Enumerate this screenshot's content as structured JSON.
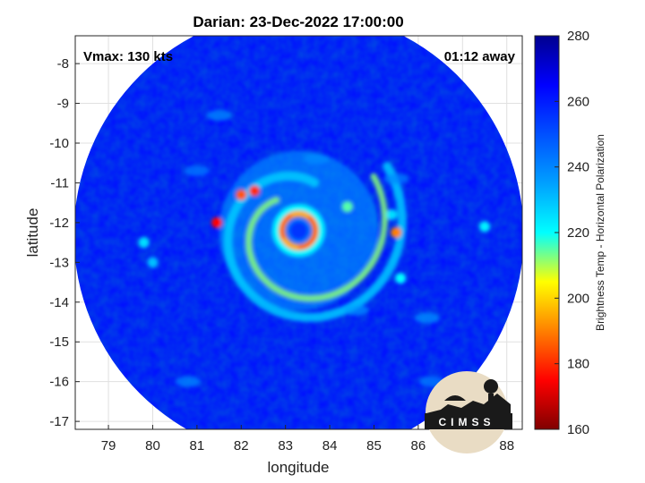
{
  "chart_data": {
    "type": "heatmap",
    "title": "Darian: 23-Dec-2022 17:00:00",
    "xlabel": "longitude",
    "ylabel": "latitude",
    "xlim": [
      78.25,
      88.35
    ],
    "ylim": [
      -17.2,
      -7.3
    ],
    "xticks": [
      79,
      80,
      81,
      82,
      83,
      84,
      85,
      86,
      87,
      88
    ],
    "yticks": [
      -8,
      -9,
      -10,
      -11,
      -12,
      -13,
      -14,
      -15,
      -16,
      -17
    ],
    "grid": true,
    "colorbar": {
      "label": "Brightness Temp - Horizontal Polarization",
      "min": 160,
      "max": 280,
      "ticks": [
        160,
        180,
        200,
        220,
        240,
        260,
        280
      ],
      "colormap": "jet",
      "colors": [
        "#800000",
        "#ff0000",
        "#ffff00",
        "#00ffff",
        "#0000ff",
        "#00008f"
      ]
    },
    "storm": {
      "eye_center": [
        83.3,
        -12.2
      ],
      "eye_value": 255,
      "eyewall_value": 195,
      "background_value": 262,
      "swath_center": [
        83.3,
        -12.3
      ],
      "swath_radius_deg": 5.35
    },
    "annotations": {
      "vmax": "Vmax: 130 kts",
      "time_away": "01:12 away"
    },
    "logo": {
      "text": "CIMSS",
      "placement": "bottom-right"
    }
  }
}
